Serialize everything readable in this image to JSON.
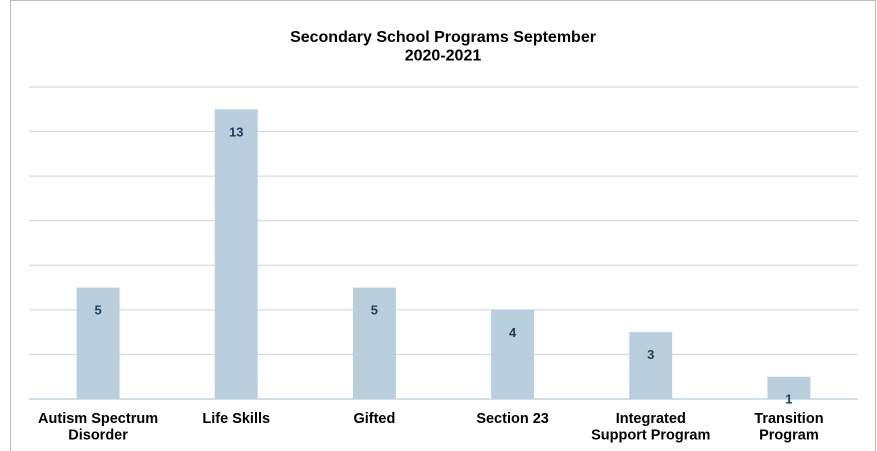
{
  "chart_data": {
    "type": "bar",
    "title": "Secondary School Programs September\n2020-2021",
    "categories": [
      "Autism Spectrum\nDisorder",
      "Life Skills",
      "Gifted",
      "Section 23",
      "Integrated\nSupport Program",
      "Transition\nProgram"
    ],
    "values": [
      5,
      13,
      5,
      4,
      3,
      1
    ],
    "color": "#b9cfdd",
    "ylim": [
      0,
      14
    ],
    "yticks": [
      0,
      2,
      4,
      6,
      8,
      10,
      12,
      14
    ],
    "grid": true
  }
}
